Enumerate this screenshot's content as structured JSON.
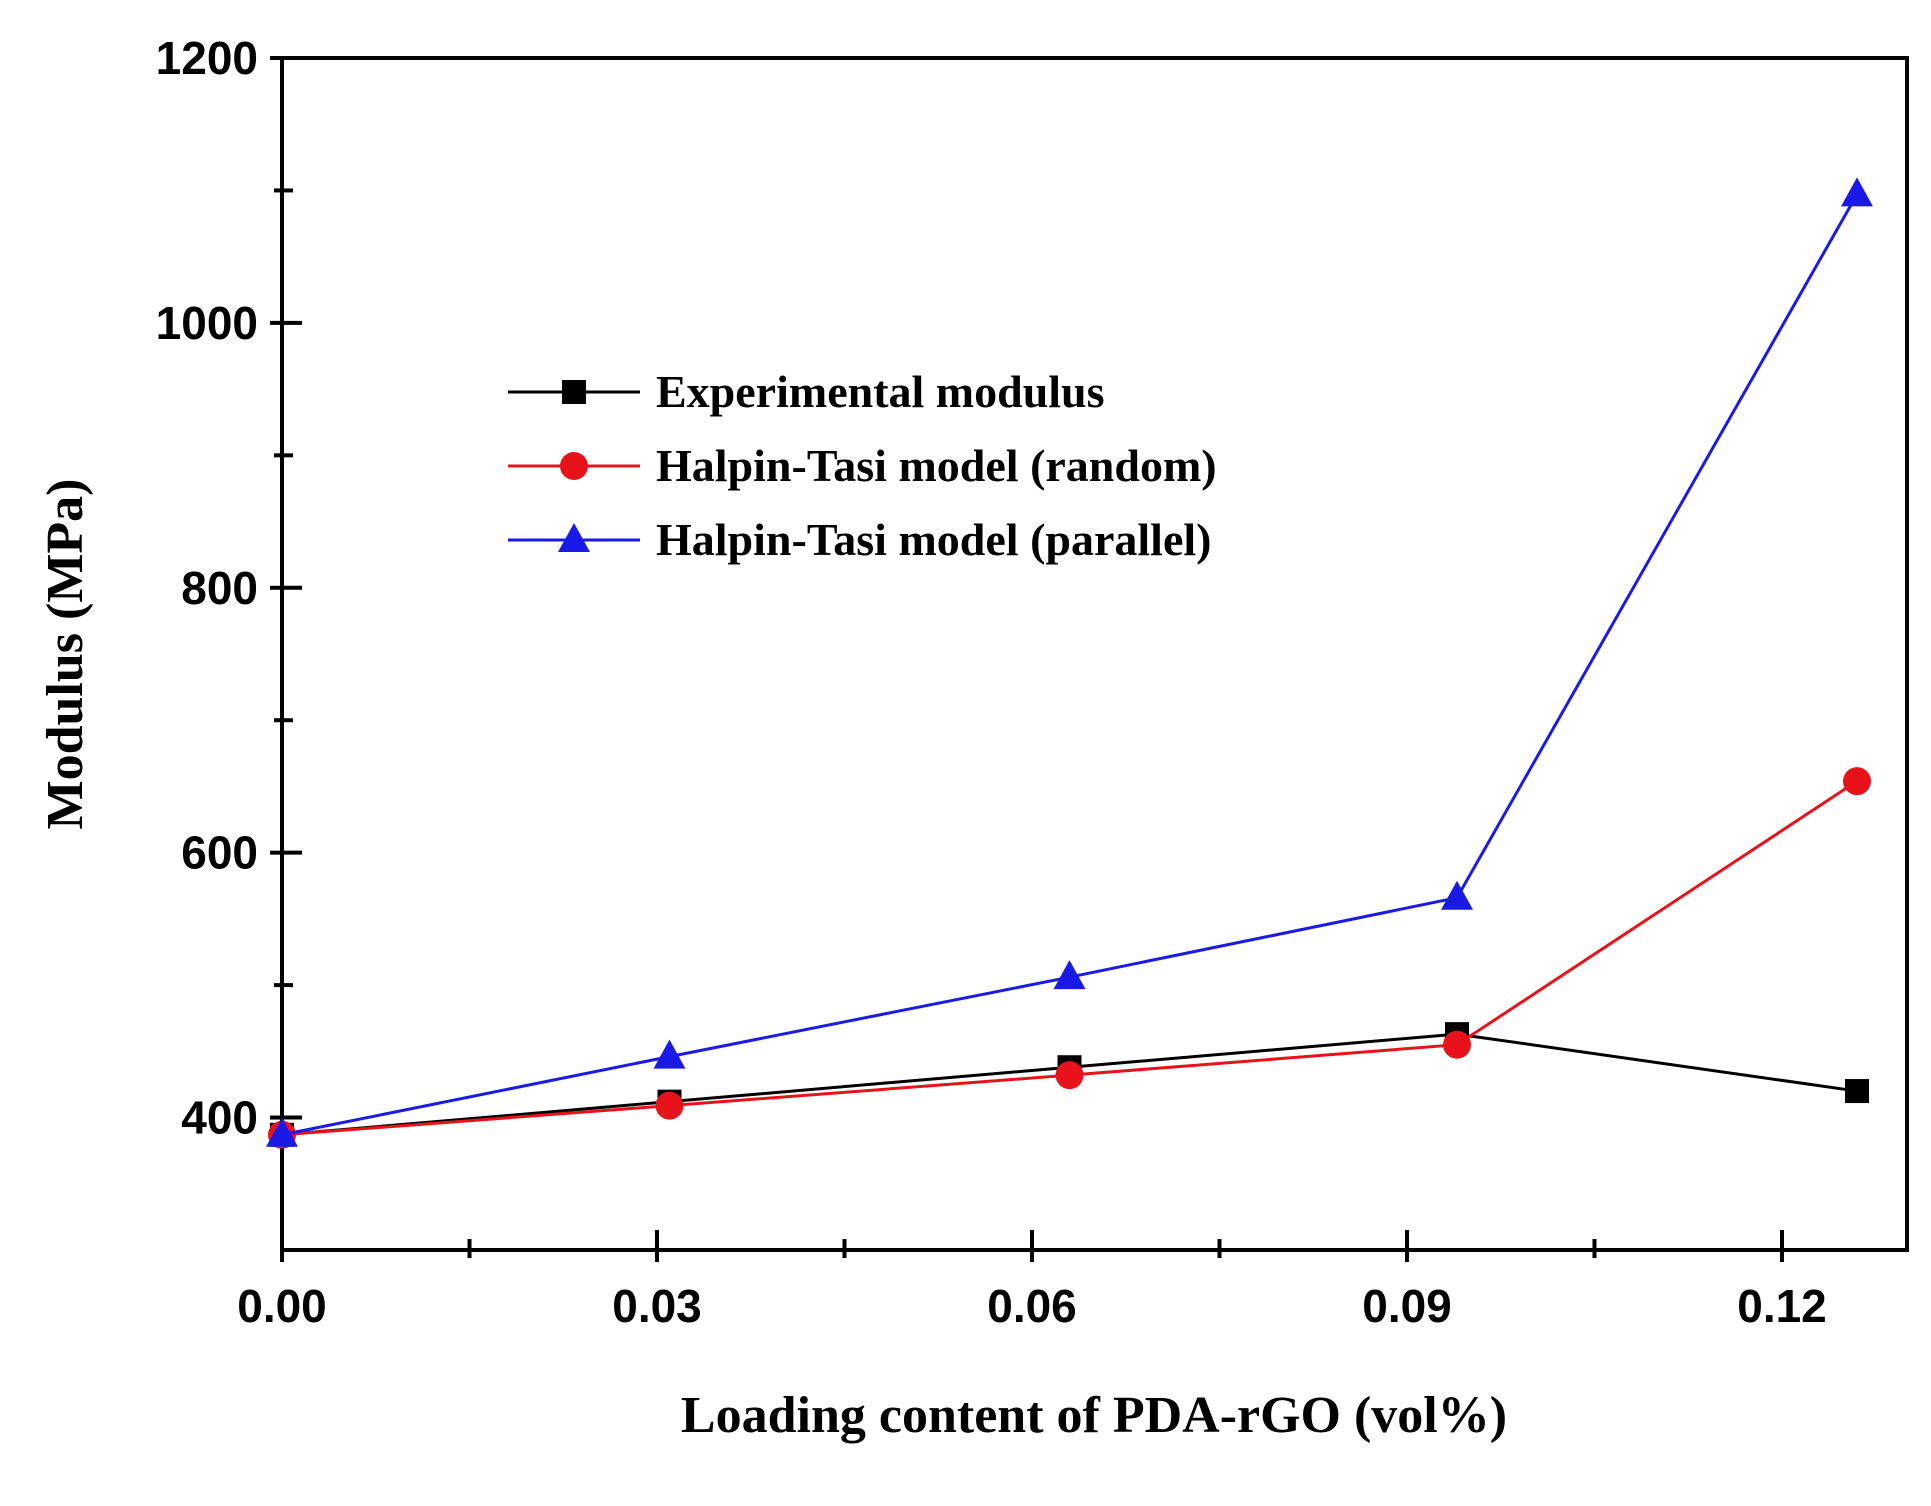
{
  "chart_data": {
    "type": "line",
    "title": "",
    "xlabel": "Loading content of PDA-rGO (vol%)",
    "ylabel": "Modulus (MPa)",
    "xlim": [
      0,
      0.13
    ],
    "ylim": [
      300,
      1200
    ],
    "xticks": [
      0.0,
      0.03,
      0.06,
      0.09,
      0.12
    ],
    "xtick_labels": [
      "0.00",
      "0.03",
      "0.06",
      "0.09",
      "0.12"
    ],
    "yticks": [
      400,
      600,
      800,
      1000,
      1200
    ],
    "ytick_labels": [
      "400",
      "600",
      "800",
      "1000",
      "1200"
    ],
    "grid": false,
    "legend_position": "upper-left",
    "x": [
      0.0,
      0.031,
      0.063,
      0.094,
      0.126
    ],
    "series": [
      {
        "name": "Experimental modulus",
        "marker": "square",
        "color": "#000000",
        "values": [
          387,
          412,
          438,
          463,
          420
        ]
      },
      {
        "name": "Halpin-Tasi model (random)",
        "marker": "circle",
        "color": "#e8131a",
        "values": [
          387,
          409,
          432,
          455,
          654
        ]
      },
      {
        "name": "Halpin-Tasi model (parallel)",
        "marker": "triangle",
        "color": "#1a1ae8",
        "values": [
          387,
          446,
          506,
          566,
          1097
        ]
      }
    ]
  }
}
